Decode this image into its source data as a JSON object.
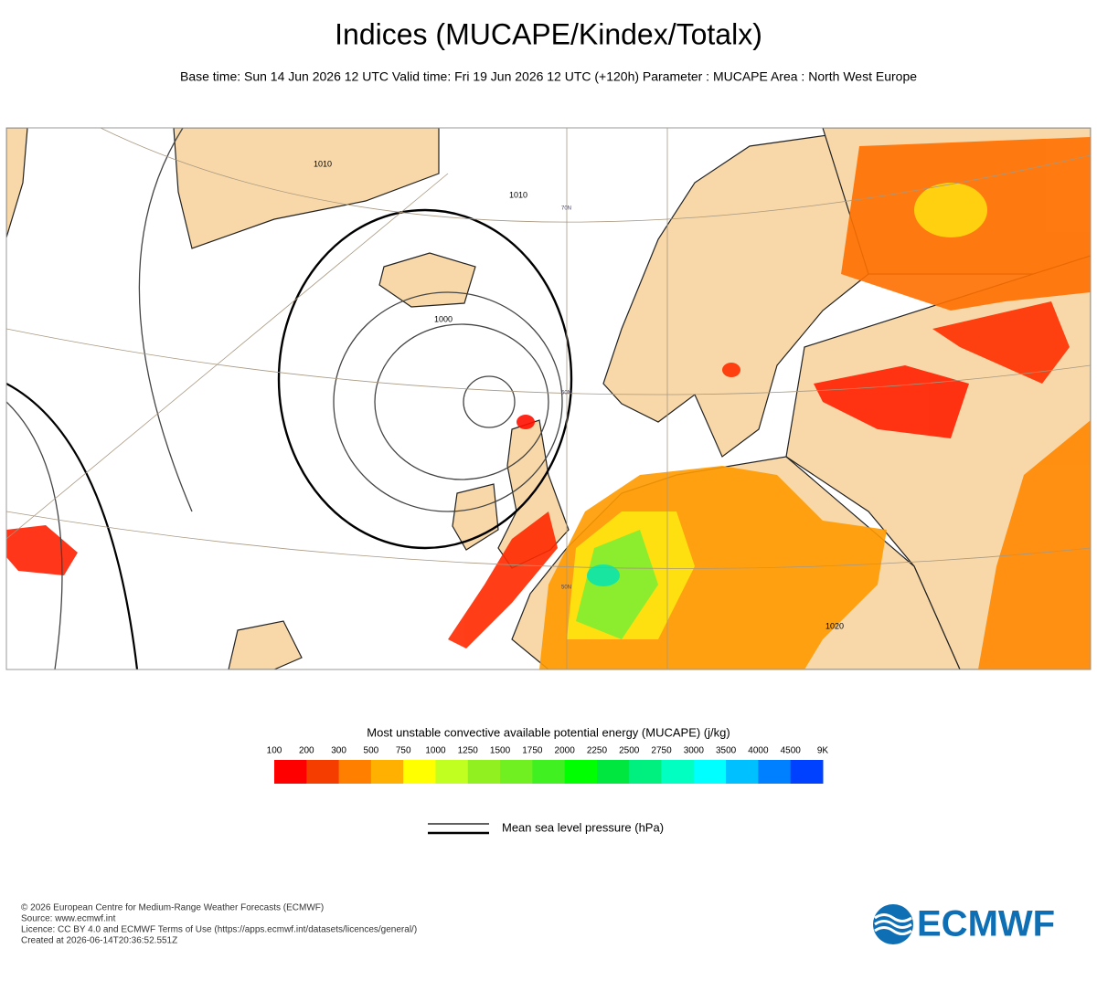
{
  "header": {
    "title": "Indices (MUCAPE/Kindex/Totalx)",
    "subtitle": "Base time: Sun 14 Jun 2026 12 UTC Valid time: Fri 19 Jun 2026 12 UTC (+120h) Parameter : MUCAPE Area : North West Europe"
  },
  "map": {
    "contour_labels": [
      "1010",
      "1010",
      "1000",
      "1020"
    ],
    "latitude_labels": [
      "70N",
      "60N",
      "50N"
    ]
  },
  "colorbar": {
    "title": "Most unstable convective available potential energy (MUCAPE) (j/kg)",
    "labels": [
      "100",
      "200",
      "300",
      "500",
      "750",
      "1000",
      "1250",
      "1500",
      "1750",
      "2000",
      "2250",
      "2500",
      "2750",
      "3000",
      "3500",
      "4000",
      "4500",
      "9K"
    ],
    "colors": [
      "#ff0000",
      "#f53d00",
      "#ff8000",
      "#ffb000",
      "#ffff00",
      "#c0ff20",
      "#90f020",
      "#70f020",
      "#40f020",
      "#00ff00",
      "#00e840",
      "#00f080",
      "#00ffc0",
      "#00ffff",
      "#00c0ff",
      "#0080ff",
      "#0040ff"
    ]
  },
  "legend": {
    "label": "Mean sea level pressure (hPa)"
  },
  "footer": {
    "lines": [
      "© 2026 European Centre for Medium-Range Weather Forecasts (ECMWF)",
      "Source: www.ecmwf.int",
      "Licence: CC BY 4.0 and ECMWF Terms of Use (https://apps.ecmwf.int/datasets/licences/general/)",
      "Created at 2026-06-14T20:36:52.551Z"
    ],
    "logo": "ECMWF"
  }
}
